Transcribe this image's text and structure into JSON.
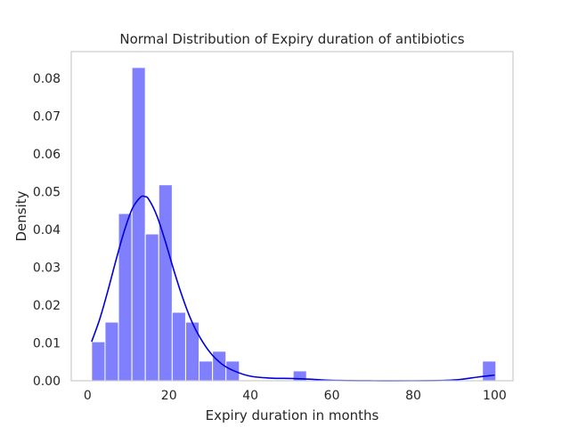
{
  "chart_data": {
    "type": "bar",
    "title": "Normal Distribution of Expiry duration of antibiotics",
    "xlabel": "Expiry duration in months",
    "ylabel": "Density",
    "xlim": [
      -4,
      104.5
    ],
    "ylim": [
      0,
      0.087
    ],
    "x_ticks": [
      0,
      20,
      40,
      60,
      80,
      100
    ],
    "y_ticks": [
      0.0,
      0.01,
      0.02,
      0.03,
      0.04,
      0.05,
      0.06,
      0.07,
      0.08
    ],
    "y_tick_labels": [
      "0.00",
      "0.01",
      "0.02",
      "0.03",
      "0.04",
      "0.05",
      "0.06",
      "0.07",
      "0.08"
    ],
    "bin_width": 3.3,
    "bins": [
      {
        "x0": 1.0,
        "x1": 4.3,
        "value": 0.0103
      },
      {
        "x0": 4.3,
        "x1": 7.6,
        "value": 0.0155
      },
      {
        "x0": 7.6,
        "x1": 10.9,
        "value": 0.0442
      },
      {
        "x0": 10.9,
        "x1": 14.2,
        "value": 0.0828
      },
      {
        "x0": 14.2,
        "x1": 17.5,
        "value": 0.0388
      },
      {
        "x0": 17.5,
        "x1": 20.8,
        "value": 0.0518
      },
      {
        "x0": 20.8,
        "x1": 24.1,
        "value": 0.0181
      },
      {
        "x0": 24.1,
        "x1": 27.4,
        "value": 0.0155
      },
      {
        "x0": 27.4,
        "x1": 30.7,
        "value": 0.0052
      },
      {
        "x0": 30.7,
        "x1": 34.0,
        "value": 0.0078
      },
      {
        "x0": 34.0,
        "x1": 37.3,
        "value": 0.0052
      },
      {
        "x0": 50.5,
        "x1": 53.8,
        "value": 0.0026
      },
      {
        "x0": 97.0,
        "x1": 100.3,
        "value": 0.0052
      }
    ],
    "kde": {
      "x": [
        1,
        3,
        5,
        7,
        9,
        11,
        13,
        14,
        15,
        17,
        19,
        21,
        23,
        25,
        27,
        30,
        33,
        36,
        40,
        45,
        50,
        55,
        60,
        70,
        80,
        88,
        92,
        96,
        100
      ],
      "y": [
        0.0103,
        0.0163,
        0.0238,
        0.0319,
        0.0395,
        0.0455,
        0.0485,
        0.0487,
        0.048,
        0.0437,
        0.0372,
        0.0299,
        0.0231,
        0.0172,
        0.0126,
        0.0076,
        0.0044,
        0.0026,
        0.0012,
        0.0007,
        0.0006,
        0.0004,
        0.0001,
        0.0,
        0.0,
        0.0001,
        0.0004,
        0.001,
        0.0015
      ]
    },
    "bar_color": "#8080ff",
    "bar_edge_color": "#ffffff",
    "kde_color": "#0000dd",
    "grid": false
  }
}
